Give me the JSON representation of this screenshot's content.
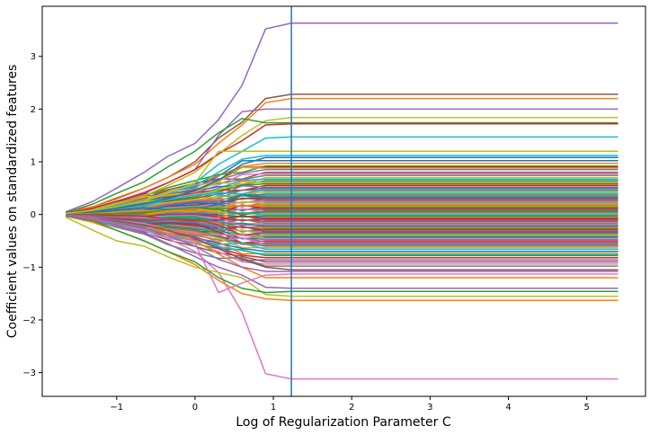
{
  "chart_data": {
    "type": "line",
    "xlabel": "Log of Regularization Parameter C",
    "ylabel": "Coefficient values on standardized features",
    "xlim": [
      -1.95,
      5.75
    ],
    "ylim": [
      -3.45,
      3.95
    ],
    "xticks": [
      -1,
      0,
      1,
      2,
      3,
      4,
      5
    ],
    "yticks": [
      -3,
      -2,
      -1,
      0,
      1,
      2,
      3
    ],
    "grid": false,
    "legend": "none",
    "vertical_line": {
      "x": 1.23,
      "color": "#1f77b4"
    },
    "x": [
      -1.65,
      -1.3,
      -1.0,
      -0.65,
      -0.35,
      0.0,
      0.3,
      0.6,
      0.9,
      1.23,
      5.4
    ],
    "highlighted_series": [
      {
        "color": "#9467bd",
        "values": [
          0.05,
          0.25,
          0.5,
          0.8,
          1.1,
          1.35,
          1.8,
          2.45,
          3.52,
          3.63,
          3.63
        ]
      },
      {
        "color": "#8c564b",
        "values": [
          0.04,
          0.15,
          0.3,
          0.5,
          0.7,
          1.0,
          1.45,
          1.75,
          2.2,
          2.28,
          2.28
        ]
      },
      {
        "color": "#ff7f0e",
        "values": [
          0.03,
          0.15,
          0.32,
          0.5,
          0.7,
          0.95,
          1.35,
          1.7,
          2.12,
          2.2,
          2.2
        ]
      },
      {
        "color": "#9467bd",
        "values": [
          0.03,
          0.12,
          0.25,
          0.42,
          0.6,
          0.85,
          1.5,
          1.95,
          2.0,
          2.0,
          2.0
        ]
      },
      {
        "color": "#bcbd22",
        "values": [
          0.02,
          0.1,
          0.2,
          0.35,
          0.55,
          0.8,
          1.15,
          1.5,
          1.78,
          1.84,
          1.84
        ]
      },
      {
        "color": "#2ca02c",
        "values": [
          0.03,
          0.2,
          0.4,
          0.62,
          0.9,
          1.2,
          1.55,
          1.82,
          1.74,
          1.74,
          1.74
        ]
      },
      {
        "color": "#d62728",
        "values": [
          0.02,
          0.12,
          0.25,
          0.4,
          0.6,
          0.85,
          1.15,
          1.4,
          1.7,
          1.72,
          1.72
        ]
      },
      {
        "color": "#17becf",
        "values": [
          0.02,
          0.08,
          0.15,
          0.25,
          0.4,
          0.6,
          0.95,
          1.2,
          1.45,
          1.47,
          1.47
        ]
      },
      {
        "color": "#e377c2",
        "values": [
          -0.03,
          -0.1,
          -0.2,
          -0.3,
          -0.45,
          -0.7,
          -1.1,
          -1.85,
          -3.02,
          -3.12,
          -3.12
        ]
      },
      {
        "color": "#ff7f0e",
        "values": [
          -0.03,
          -0.15,
          -0.3,
          -0.5,
          -0.7,
          -0.95,
          -1.25,
          -1.5,
          -1.6,
          -1.63,
          -1.63
        ]
      },
      {
        "color": "#bcbd22",
        "values": [
          -0.05,
          -0.3,
          -0.5,
          -0.6,
          -0.8,
          -1.0,
          -1.1,
          -1.2,
          -1.52,
          -1.55,
          -1.55
        ]
      },
      {
        "color": "#2ca02c",
        "values": [
          -0.03,
          -0.12,
          -0.3,
          -0.5,
          -0.7,
          -0.9,
          -1.2,
          -1.4,
          -1.48,
          -1.46,
          -1.46
        ]
      },
      {
        "color": "#9467bd",
        "values": [
          -0.02,
          -0.1,
          -0.2,
          -0.35,
          -0.55,
          -0.8,
          -1.0,
          -1.15,
          -1.38,
          -1.4,
          -1.4
        ]
      },
      {
        "color": "#e377c2",
        "values": [
          -0.02,
          -0.08,
          -0.15,
          -0.25,
          -0.4,
          -0.55,
          -1.48,
          -1.3,
          -1.15,
          -1.13,
          -1.13
        ]
      },
      {
        "color": "#ff7f0e",
        "values": [
          -0.02,
          -0.08,
          -0.15,
          -0.25,
          -0.35,
          -0.5,
          -0.75,
          -1.0,
          -1.2,
          -1.2,
          -1.2
        ]
      },
      {
        "color": "#8c564b",
        "values": [
          -0.02,
          -0.07,
          -0.12,
          -0.2,
          -0.3,
          -0.45,
          -0.65,
          -0.85,
          -1.0,
          -1.05,
          -1.05
        ]
      },
      {
        "color": "#9467bd",
        "values": [
          -0.02,
          -0.07,
          -0.15,
          -0.25,
          -0.4,
          -0.6,
          -0.85,
          -1.0,
          -1.08,
          -1.08,
          -1.08
        ]
      },
      {
        "color": "#17becf",
        "values": [
          0.02,
          0.08,
          0.15,
          0.25,
          0.4,
          0.55,
          0.8,
          1.05,
          1.12,
          1.12,
          1.12
        ]
      },
      {
        "color": "#1f77b4",
        "values": [
          0.02,
          0.06,
          0.12,
          0.2,
          0.3,
          0.45,
          0.65,
          0.95,
          1.08,
          1.08,
          1.08
        ]
      },
      {
        "color": "#bcbd22",
        "values": [
          0.02,
          0.08,
          0.15,
          0.25,
          0.4,
          0.6,
          1.2,
          1.2,
          1.2,
          1.2,
          1.2
        ]
      }
    ],
    "bulk_series": {
      "count": 90,
      "palette": [
        "#1f77b4",
        "#ff7f0e",
        "#2ca02c",
        "#d62728",
        "#9467bd",
        "#8c564b",
        "#e377c2",
        "#7f7f7f",
        "#bcbd22",
        "#17becf"
      ],
      "final_values": [
        1.02,
        0.97,
        0.92,
        0.9,
        0.85,
        0.8,
        0.77,
        0.74,
        0.7,
        0.67,
        0.64,
        0.6,
        0.58,
        0.55,
        0.52,
        0.5,
        0.47,
        0.45,
        0.42,
        0.4,
        0.37,
        0.35,
        0.33,
        0.31,
        0.29,
        0.27,
        0.25,
        0.23,
        0.21,
        0.19,
        0.17,
        0.15,
        0.13,
        0.11,
        0.09,
        0.07,
        0.05,
        0.03,
        0.01,
        -0.01,
        -0.03,
        -0.05,
        -0.07,
        -0.09,
        -0.11,
        -0.13,
        -0.15,
        -0.17,
        -0.19,
        -0.21,
        -0.23,
        -0.25,
        -0.27,
        -0.29,
        -0.31,
        -0.33,
        -0.35,
        -0.37,
        -0.39,
        -0.41,
        -0.43,
        -0.45,
        -0.47,
        -0.5,
        -0.52,
        -0.55,
        -0.57,
        -0.6,
        -0.63,
        -0.66,
        -0.7,
        -0.74,
        -0.78,
        -0.82,
        -0.86,
        -0.9,
        -0.94,
        -0.98,
        0.62,
        0.48,
        0.32,
        0.18,
        0.06,
        -0.08,
        -0.2,
        -0.34,
        -0.46,
        -0.58,
        0.88,
        -0.76
      ]
    }
  }
}
